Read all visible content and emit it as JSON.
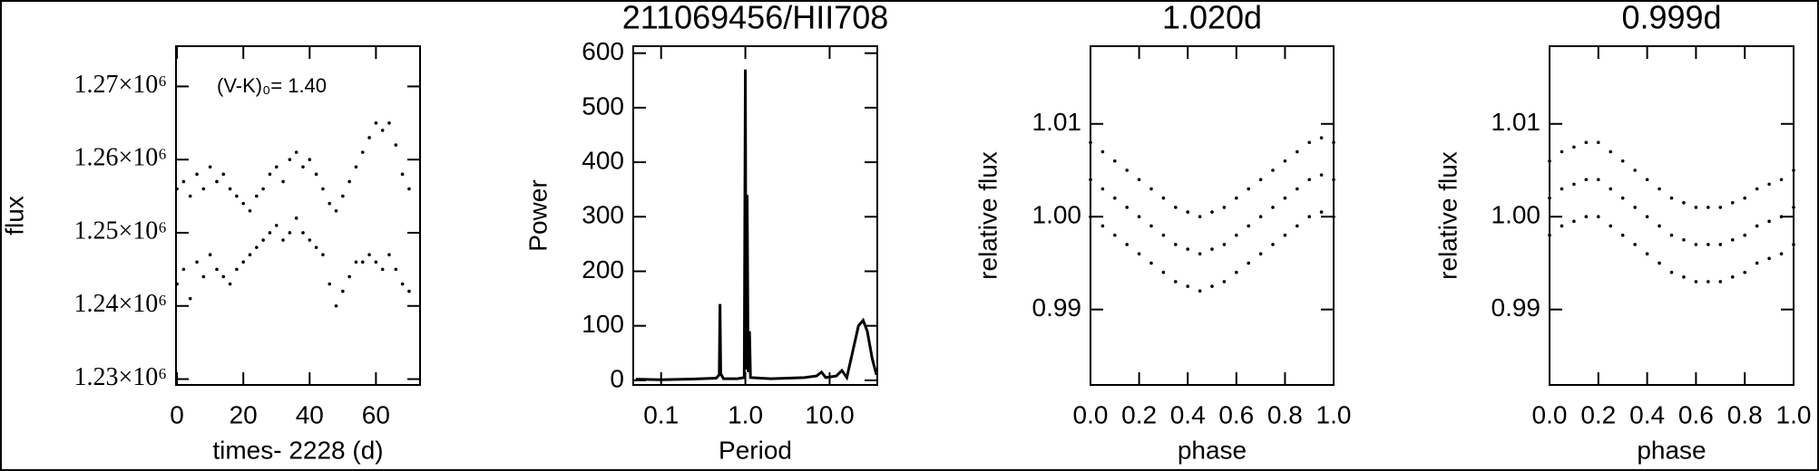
{
  "chart_data": [
    {
      "type": "scatter",
      "ylabel": "flux",
      "xlabel": "times- 2228 (d)",
      "annotation": "(V-K)₀= 1.40",
      "color": "#000000",
      "xlim": [
        -0.3,
        73.3
      ],
      "xticks": [
        0,
        20,
        40,
        60
      ],
      "ylim": [
        1229200,
        1275500
      ],
      "yticks": [
        {
          "value": 1230000,
          "label": "1.23×10⁶"
        },
        {
          "value": 1240000,
          "label": "1.24×10⁶"
        },
        {
          "value": 1250000,
          "label": "1.25×10⁶"
        },
        {
          "value": 1260000,
          "label": "1.26×10⁶"
        },
        {
          "value": 1270000,
          "label": "1.27×10⁶"
        }
      ],
      "x": [
        0,
        0,
        2,
        2,
        4,
        4,
        6,
        6,
        8,
        8,
        10,
        10,
        12,
        12,
        14,
        14,
        16,
        16,
        18,
        18,
        20,
        20,
        22,
        22,
        24,
        24,
        26,
        26,
        28,
        28,
        30,
        30,
        32,
        32,
        34,
        34,
        36,
        36,
        38,
        38,
        40,
        40,
        42,
        42,
        44,
        44,
        46,
        46,
        48,
        48,
        50,
        50,
        52,
        52,
        54,
        54,
        56,
        56,
        58,
        58,
        60,
        60,
        62,
        62,
        64,
        64,
        66,
        66,
        68,
        68,
        70,
        70
      ],
      "values": [
        1256000,
        1243000,
        1257000,
        1245000,
        1255000,
        1241000,
        1258000,
        1246000,
        1256000,
        1244000,
        1259000,
        1247000,
        1257000,
        1245000,
        1258000,
        1244000,
        1256000,
        1243000,
        1255000,
        1245000,
        1254000,
        1246000,
        1253000,
        1247000,
        1255000,
        1248000,
        1256000,
        1249000,
        1258000,
        1250000,
        1259000,
        1251000,
        1257000,
        1249000,
        1260000,
        1250000,
        1261000,
        1252000,
        1259000,
        1250000,
        1260000,
        1249000,
        1258000,
        1248000,
        1256000,
        1247000,
        1254000,
        1243000,
        1253000,
        1240000,
        1255000,
        1242000,
        1257000,
        1244000,
        1259000,
        1246000,
        1261000,
        1246000,
        1263000,
        1247000,
        1265000,
        1246000,
        1264000,
        1245000,
        1265000,
        1247000,
        1262000,
        1245000,
        1258000,
        1243000,
        1256000,
        1242000
      ]
    },
    {
      "type": "line",
      "title": "211069456/HII708",
      "ylabel": "Power",
      "xlabel": "Period",
      "color": "#000000",
      "xlog": true,
      "xlim": [
        0.0467,
        36.8
      ],
      "xticks": [
        0.1,
        {
          "value": 1,
          "label": "1.0"
        },
        {
          "value": 10,
          "label": "10.0"
        }
      ],
      "ylim": [
        -8.5,
        612.8
      ],
      "yticks": [
        0,
        100,
        200,
        300,
        400,
        500,
        600
      ],
      "x": [
        0.05,
        0.1,
        0.2,
        0.3,
        0.45,
        0.49,
        0.5,
        0.51,
        0.55,
        0.8,
        0.97,
        1.0,
        1.02,
        1.05,
        1.08,
        1.12,
        1.15,
        2,
        5,
        7,
        8,
        9,
        12,
        14,
        16,
        18,
        22,
        25,
        28,
        32,
        36
      ],
      "values": [
        2,
        1,
        2,
        3,
        4,
        10,
        140,
        12,
        3,
        3,
        5,
        570,
        20,
        340,
        15,
        90,
        5,
        3,
        5,
        8,
        15,
        5,
        8,
        18,
        5,
        40,
        100,
        110,
        90,
        40,
        10
      ]
    },
    {
      "type": "scatter",
      "title": "1.020d",
      "ylabel": "relative flux",
      "xlabel": "phase",
      "color": "#000000",
      "xlim": [
        0,
        1
      ],
      "xticks": [
        {
          "value": 0,
          "label": "0.0"
        },
        0.2,
        0.4,
        0.6,
        0.8,
        {
          "value": 1,
          "label": "1.0"
        }
      ],
      "ylim": [
        0.98187,
        1.01837
      ],
      "yticks": [
        0.99,
        {
          "value": 1,
          "label": "1.00"
        },
        1.01
      ],
      "x": [
        0,
        0,
        0,
        0.05,
        0.05,
        0.05,
        0.1,
        0.1,
        0.1,
        0.15,
        0.15,
        0.15,
        0.2,
        0.2,
        0.2,
        0.25,
        0.25,
        0.25,
        0.3,
        0.3,
        0.3,
        0.35,
        0.35,
        0.35,
        0.4,
        0.4,
        0.4,
        0.45,
        0.45,
        0.45,
        0.5,
        0.5,
        0.5,
        0.55,
        0.55,
        0.55,
        0.6,
        0.6,
        0.6,
        0.65,
        0.65,
        0.65,
        0.7,
        0.7,
        0.7,
        0.75,
        0.75,
        0.75,
        0.8,
        0.8,
        0.8,
        0.85,
        0.85,
        0.85,
        0.9,
        0.9,
        0.9,
        0.95,
        0.95,
        0.95,
        1,
        1,
        1
      ],
      "values": [
        1.008,
        1.004,
        1.0,
        1.007,
        1.003,
        0.999,
        1.006,
        1.002,
        0.998,
        1.005,
        1.001,
        0.997,
        1.004,
        1.0,
        0.996,
        1.003,
        0.999,
        0.995,
        1.002,
        0.998,
        0.994,
        1.001,
        0.997,
        0.993,
        1.0005,
        0.9965,
        0.9925,
        1.0,
        0.996,
        0.992,
        1.0005,
        0.9965,
        0.9925,
        1.001,
        0.997,
        0.993,
        1.002,
        0.998,
        0.994,
        1.003,
        0.999,
        0.995,
        1.004,
        1.0,
        0.996,
        1.005,
        1.001,
        0.997,
        1.006,
        1.002,
        0.998,
        1.007,
        1.003,
        0.999,
        1.008,
        1.004,
        1.0,
        1.0085,
        1.0045,
        1.0005,
        1.008,
        1.004,
        1.0
      ]
    },
    {
      "type": "scatter",
      "title": "0.999d",
      "ylabel": "relative flux",
      "xlabel": "phase",
      "color": "#000000",
      "xlim": [
        0,
        1
      ],
      "xticks": [
        {
          "value": 0,
          "label": "0.0"
        },
        0.2,
        0.4,
        0.6,
        0.8,
        {
          "value": 1,
          "label": "1.0"
        }
      ],
      "ylim": [
        0.98187,
        1.01837
      ],
      "yticks": [
        0.99,
        {
          "value": 1,
          "label": "1.00"
        },
        1.01
      ],
      "x": [
        0,
        0,
        0,
        0.05,
        0.05,
        0.05,
        0.1,
        0.1,
        0.1,
        0.15,
        0.15,
        0.15,
        0.2,
        0.2,
        0.2,
        0.25,
        0.25,
        0.25,
        0.3,
        0.3,
        0.3,
        0.35,
        0.35,
        0.35,
        0.4,
        0.4,
        0.4,
        0.45,
        0.45,
        0.45,
        0.5,
        0.5,
        0.5,
        0.55,
        0.55,
        0.55,
        0.6,
        0.6,
        0.6,
        0.65,
        0.65,
        0.65,
        0.7,
        0.7,
        0.7,
        0.75,
        0.75,
        0.75,
        0.8,
        0.8,
        0.8,
        0.85,
        0.85,
        0.85,
        0.9,
        0.9,
        0.9,
        0.95,
        0.95,
        0.95,
        1,
        1,
        1
      ],
      "values": [
        1.006,
        1.002,
        0.998,
        1.007,
        1.003,
        0.999,
        1.0075,
        1.0035,
        0.9995,
        1.008,
        1.004,
        1.0,
        1.008,
        1.004,
        1.0,
        1.007,
        1.003,
        0.999,
        1.006,
        1.002,
        0.998,
        1.005,
        1.001,
        0.997,
        1.004,
        1.0,
        0.996,
        1.003,
        0.999,
        0.995,
        1.002,
        0.998,
        0.994,
        1.0015,
        0.9975,
        0.9935,
        1.001,
        0.997,
        0.993,
        1.001,
        0.997,
        0.993,
        1.001,
        0.997,
        0.993,
        1.0015,
        0.9975,
        0.9935,
        1.002,
        0.998,
        0.994,
        1.003,
        0.999,
        0.995,
        1.0035,
        0.9995,
        0.9955,
        1.004,
        1.0,
        0.996,
        1.005,
        1.001,
        0.997
      ]
    }
  ]
}
